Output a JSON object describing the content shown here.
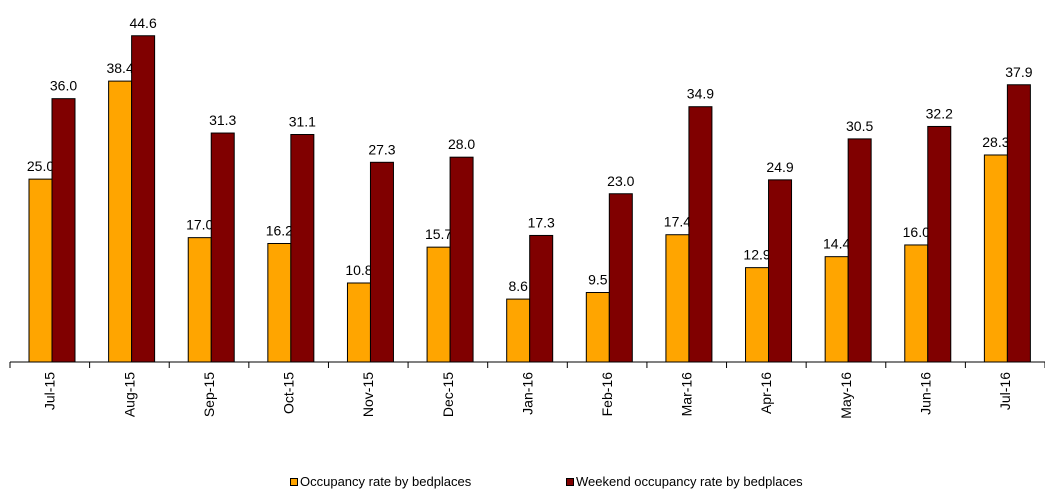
{
  "chart_data": {
    "type": "bar",
    "categories": [
      "Jul-15",
      "Aug-15",
      "Sep-15",
      "Oct-15",
      "Nov-15",
      "Dec-15",
      "Jan-16",
      "Feb-16",
      "Mar-16",
      "Apr-16",
      "May-16",
      "Jun-16",
      "Jul-16"
    ],
    "series": [
      {
        "name": "Occupancy rate by bedplaces",
        "color": "#FFA500",
        "values": [
          25.0,
          38.4,
          17.0,
          16.2,
          10.8,
          15.7,
          8.6,
          9.5,
          17.4,
          12.9,
          14.4,
          16.0,
          28.3
        ],
        "labels": [
          "25.0",
          "38.4",
          "17.0",
          "16.2",
          "10.8",
          "15.7",
          "8.6",
          "9.5",
          "17.4",
          "12.9",
          "14.4",
          "16.0",
          "28.3"
        ]
      },
      {
        "name": "Weekend occupancy rate by bedplaces",
        "color": "#800000",
        "values": [
          36.0,
          44.6,
          31.3,
          31.1,
          27.3,
          28.0,
          17.3,
          23.0,
          34.9,
          24.9,
          30.5,
          32.2,
          37.9
        ],
        "labels": [
          "36.0",
          "44.6",
          "31.3",
          "31.1",
          "27.3",
          "28.0",
          "17.3",
          "23.0",
          "34.9",
          "24.9",
          "30.5",
          "32.2",
          "37.9"
        ]
      }
    ],
    "title": "",
    "xlabel": "",
    "ylabel": "",
    "ylim": [
      0,
      45
    ],
    "grid": false,
    "legend_position": "bottom"
  }
}
